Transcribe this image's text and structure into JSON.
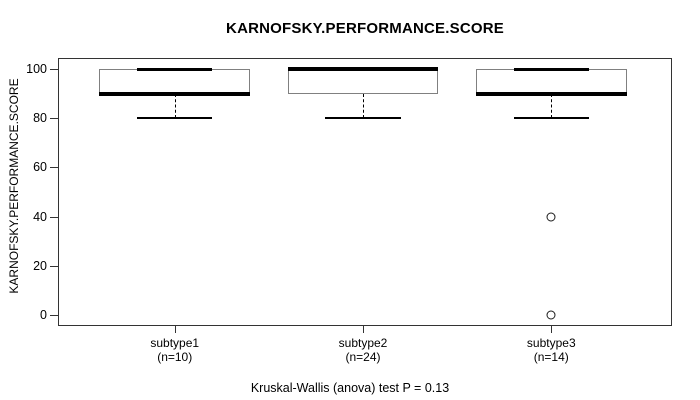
{
  "chart_data": {
    "type": "boxplot",
    "title": "KARNOFSKY.PERFORMANCE.SCORE",
    "ylabel": "KARNOFSKY.PERFORMANCE.SCORE",
    "caption": "Kruskal-Wallis (anova) test P = 0.13",
    "y_ticks": [
      0,
      20,
      40,
      60,
      80,
      100
    ],
    "ylim": [
      -4.5,
      104.5
    ],
    "grid": false,
    "legend_position": "none",
    "groups": [
      {
        "label": "subtype1",
        "sublabel": "(n=10)",
        "n": 10,
        "stats": {
          "min": 80,
          "q1": 90,
          "median": 90,
          "q3": 100,
          "max": 100
        },
        "outliers": []
      },
      {
        "label": "subtype2",
        "sublabel": "(n=24)",
        "n": 24,
        "stats": {
          "min": 80,
          "q1": 90,
          "median": 100,
          "q3": 100,
          "max": 100
        },
        "outliers": []
      },
      {
        "label": "subtype3",
        "sublabel": "(n=14)",
        "n": 14,
        "stats": {
          "min": 80,
          "q1": 90,
          "median": 90,
          "q3": 100,
          "max": 100
        },
        "outliers": [
          40,
          0
        ]
      }
    ],
    "colors": {
      "box_border": "#808080",
      "line": "#000000",
      "axis": "#333333",
      "background": "#ffffff"
    }
  }
}
